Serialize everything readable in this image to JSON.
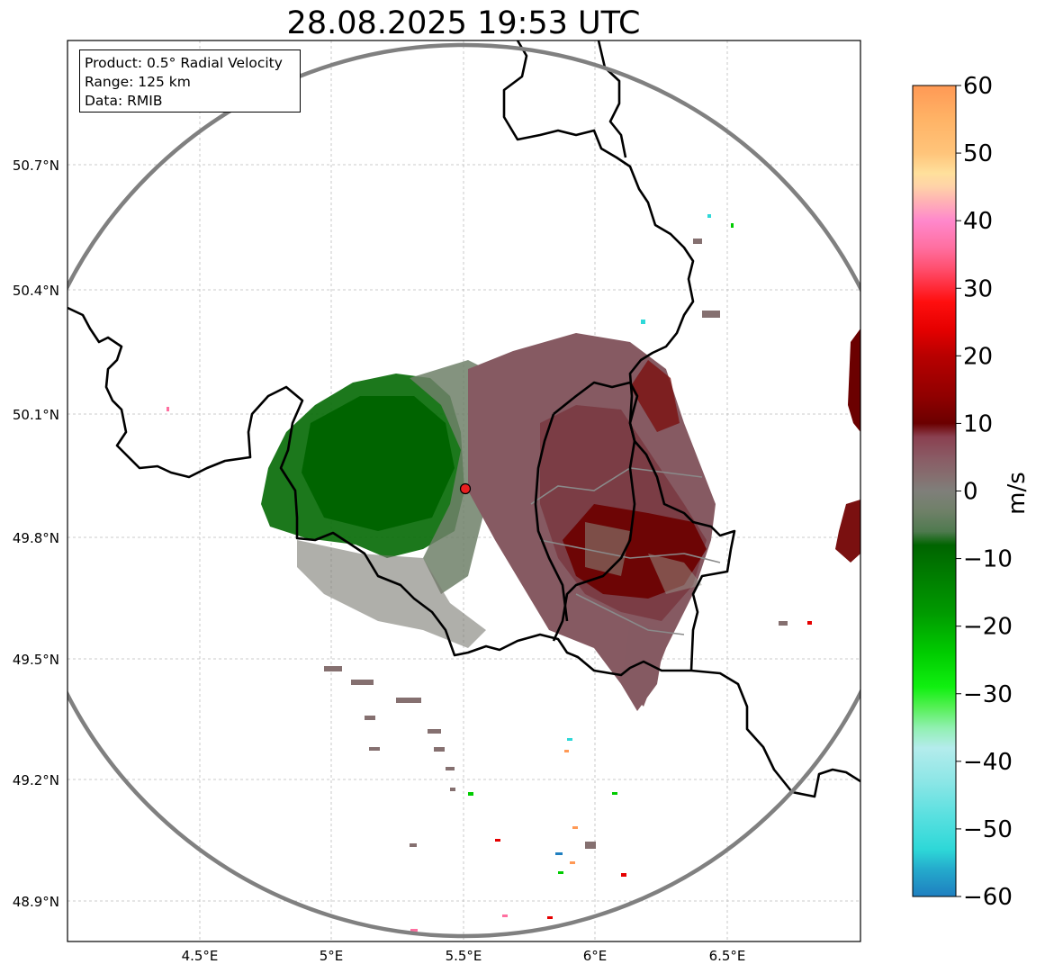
{
  "title": "28.08.2025 19:53 UTC",
  "info": {
    "product": "Product: 0.5° Radial Velocity",
    "range": "Range: 125 km",
    "data": "Data: RMIB"
  },
  "map": {
    "lon_range": [
      4.0,
      7.0
    ],
    "lat_range": [
      48.8,
      50.99
    ],
    "radar_site": {
      "lon": 5.505,
      "lat": 49.914
    },
    "lat_ticks": [
      {
        "value": 50.7,
        "label": "50.7°N"
      },
      {
        "value": 50.4,
        "label": "50.4°N"
      },
      {
        "value": 50.1,
        "label": "50.1°N"
      },
      {
        "value": 49.8,
        "label": "49.8°N"
      },
      {
        "value": 49.5,
        "label": "49.5°N"
      },
      {
        "value": 49.2,
        "label": "49.2°N"
      },
      {
        "value": 48.9,
        "label": "48.9°N"
      }
    ],
    "lon_ticks": [
      {
        "value": 4.5,
        "label": "4.5°E"
      },
      {
        "value": 5.0,
        "label": "5°E"
      },
      {
        "value": 5.5,
        "label": "5.5°E"
      },
      {
        "value": 6.0,
        "label": "6°E"
      },
      {
        "value": 6.5,
        "label": "6.5°E"
      }
    ]
  },
  "colorbar": {
    "label": "m/s",
    "min": -60,
    "max": 60,
    "ticks": [
      "60",
      "50",
      "40",
      "30",
      "20",
      "10",
      "0",
      "−10",
      "−20",
      "−30",
      "−40",
      "−50",
      "−60"
    ],
    "tick_values": [
      60,
      50,
      40,
      30,
      20,
      10,
      0,
      -10,
      -20,
      -30,
      -40,
      -50,
      -60
    ],
    "stops": [
      {
        "v": 60,
        "color": "#ff9955"
      },
      {
        "v": 55,
        "color": "#ffb366"
      },
      {
        "v": 50,
        "color": "#ffc47a"
      },
      {
        "v": 47,
        "color": "#ffe09c"
      },
      {
        "v": 45,
        "color": "#ffd2a8"
      },
      {
        "v": 43,
        "color": "#ffb4b4"
      },
      {
        "v": 40,
        "color": "#ff88cc"
      },
      {
        "v": 36,
        "color": "#ff6fa0"
      },
      {
        "v": 33,
        "color": "#ff5070"
      },
      {
        "v": 28,
        "color": "#ff0f0f"
      },
      {
        "v": 24,
        "color": "#e60000"
      },
      {
        "v": 20,
        "color": "#b80000"
      },
      {
        "v": 14,
        "color": "#900000"
      },
      {
        "v": 10,
        "color": "#6b0000"
      },
      {
        "v": 8,
        "color": "#8a4050"
      },
      {
        "v": 5,
        "color": "#8a5a64"
      },
      {
        "v": 2,
        "color": "#857070"
      },
      {
        "v": 0,
        "color": "#7f7f7a"
      },
      {
        "v": -3,
        "color": "#6f8068"
      },
      {
        "v": -6,
        "color": "#4f7a4f"
      },
      {
        "v": -8,
        "color": "#006400"
      },
      {
        "v": -12,
        "color": "#007a00"
      },
      {
        "v": -18,
        "color": "#009a00"
      },
      {
        "v": -24,
        "color": "#00cc00"
      },
      {
        "v": -29,
        "color": "#10f010"
      },
      {
        "v": -32,
        "color": "#55f055"
      },
      {
        "v": -35,
        "color": "#90f0b0"
      },
      {
        "v": -38,
        "color": "#b4ecec"
      },
      {
        "v": -43,
        "color": "#8ce6e6"
      },
      {
        "v": -48,
        "color": "#5ae0e0"
      },
      {
        "v": -53,
        "color": "#2ed8d8"
      },
      {
        "v": -56,
        "color": "#24aacc"
      },
      {
        "v": -60,
        "color": "#1f7fc0"
      }
    ]
  }
}
